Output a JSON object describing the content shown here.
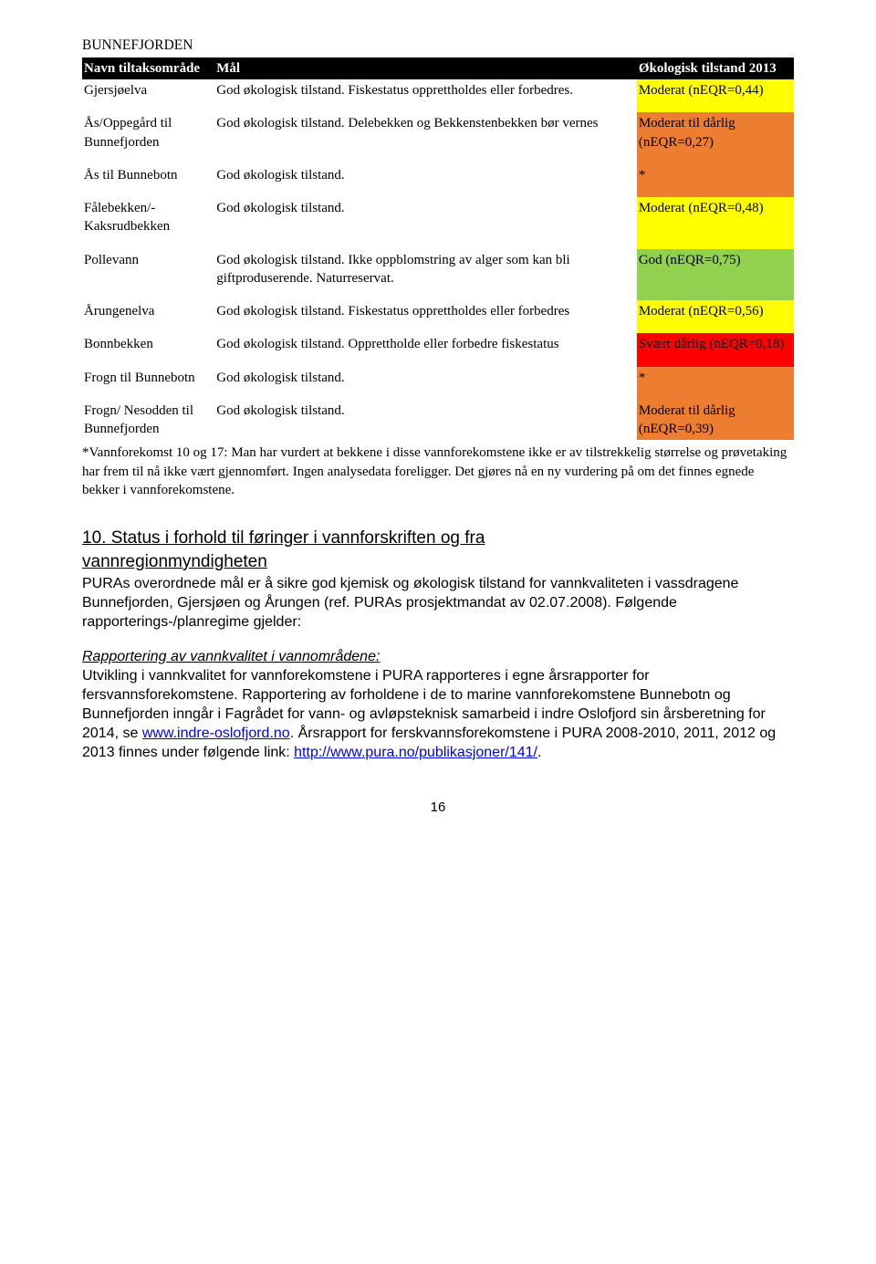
{
  "title": "BUNNEFJORDEN",
  "header": {
    "col1": "Navn tiltaksområde",
    "col2": "Mål",
    "col3": "Økologisk tilstand 2013",
    "bg": "#000000",
    "fg": "#ffffff"
  },
  "status_colors": {
    "yellow": "#ffff00",
    "orange": "#ed7d31",
    "green": "#92d050",
    "red": "#ff0000"
  },
  "rows": [
    {
      "name": "Gjersjøelva",
      "goal": "God økologisk tilstand. Fiskestatus opprettholdes eller forbedres.",
      "status": "Moderat (nEQR=0,44)",
      "bg": "#ffff00"
    },
    {
      "name": "Ås/Oppegård til Bunnefjorden",
      "goal": "God økologisk tilstand. Delebekken og Bekkenstenbekken bør vernes",
      "status": "Moderat til dårlig (nEQR=0,27)",
      "bg": "#ed7d31"
    },
    {
      "name": "Ås til Bunnebotn",
      "goal": "God økologisk tilstand.",
      "status": "*",
      "bg": "#ed7d31"
    },
    {
      "name": "Fålebekken/- Kaksrudbekken",
      "goal": "God økologisk tilstand.",
      "status": "Moderat (nEQR=0,48)",
      "bg": "#ffff00"
    },
    {
      "name": "Pollevann",
      "goal": "God økologisk tilstand. Ikke oppblomstring av alger som kan bli giftproduserende. Naturreservat.",
      "status": "God (nEQR=0,75)",
      "bg": "#92d050"
    },
    {
      "name": "Årungenelva",
      "goal": "God økologisk tilstand. Fiskestatus opprettholdes eller forbedres",
      "status": "Moderat (nEQR=0,56)",
      "bg": "#ffff00"
    },
    {
      "name": "Bonnbekken",
      "goal": "God økologisk tilstand. Opprettholde eller forbedre fiskestatus",
      "status": "Svært dårlig (nEQR=0,18)",
      "bg": "#ff0000"
    },
    {
      "name": "Frogn til Bunnebotn",
      "goal": "God økologisk tilstand.",
      "status": "*",
      "bg": "#ed7d31"
    },
    {
      "name": "Frogn/ Nesodden til Bunnefjorden",
      "goal": "God økologisk tilstand.",
      "status": "Moderat til dårlig (nEQR=0,39)",
      "bg": "#ed7d31"
    }
  ],
  "footnote": "*Vannforekomst 10 og 17: Man har vurdert at bekkene i disse vannforekomstene ikke er av tilstrekkelig størrelse og prøvetaking har frem til nå ikke vært gjennomført. Ingen analysedata foreligger. Det gjøres nå en ny vurdering på om det finnes egnede bekker i vannforekomstene.",
  "section": {
    "heading_line1": "10. Status i forhold til føringer i vannforskriften og fra",
    "heading_line2": "vannregionmyndigheten",
    "para1": "PURAs overordnede mål er å sikre god kjemisk og økologisk tilstand for vannkvaliteten i vassdragene Bunnefjorden, Gjersjøen og Årungen (ref. PURAs prosjektmandat av 02.07.2008). Følgende rapporterings-/planregime gjelder:",
    "subheading": "Rapportering av vannkvalitet i vannområdene:",
    "para2_a": "Utvikling i vannkvalitet for vannforekomstene i PURA rapporteres i egne årsrapporter for fersvannsforekomstene. Rapportering av forholdene i de to marine vannforekomstene Bunnebotn og Bunnefjorden inngår i Fagrådet for vann- og avløpsteknisk samarbeid i indre Oslofjord sin årsberetning for 2014, se ",
    "link1": "www.indre-oslofjord.no",
    "para2_b": ". Årsrapport for ferskvannsforekomstene i PURA 2008-2010, 2011, 2012 og 2013 finnes under følgende link: ",
    "link2": "http://www.pura.no/publikasjoner/141/",
    "para2_c": "."
  },
  "page_number": "16"
}
